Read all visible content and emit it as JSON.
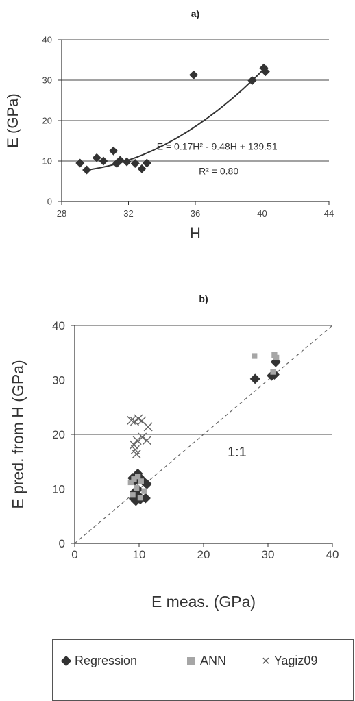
{
  "chart_data": [
    {
      "type": "scatter",
      "title": "a)",
      "xlabel": "H",
      "ylabel": "E (GPa)",
      "xlim": [
        28,
        44
      ],
      "ylim": [
        0,
        40
      ],
      "xticks": [
        28,
        32,
        36,
        40,
        44
      ],
      "yticks": [
        0,
        10,
        20,
        30,
        40
      ],
      "grid": "horizontal",
      "series": [
        {
          "marker": "diamond",
          "color": "#333333",
          "x": [
            29.1,
            29.5,
            30.1,
            30.5,
            31.1,
            31.3,
            31.5,
            31.9,
            32.4,
            32.8,
            33.1,
            35.9,
            39.4,
            40.1,
            40.2
          ],
          "y": [
            9.5,
            7.8,
            10.8,
            10.0,
            12.5,
            9.4,
            10.2,
            9.8,
            9.4,
            8.1,
            9.5,
            31.3,
            29.9,
            33.0,
            32.1
          ]
        }
      ],
      "trendline": {
        "type": "polynomial",
        "coefficients": [
          0.17,
          -9.48,
          139.51
        ],
        "x_range": [
          29.4,
          40.3
        ],
        "equation": "E = 0.17H² - 9.48H + 139.51",
        "r2_label": "R² = 0.80"
      }
    },
    {
      "type": "scatter",
      "title": "b)",
      "xlabel": "E meas. (GPa)",
      "ylabel": "E pred. from H (GPa)",
      "xlim": [
        0,
        40
      ],
      "ylim": [
        0,
        40
      ],
      "xticks": [
        0,
        10,
        20,
        30,
        40
      ],
      "yticks": [
        0,
        10,
        20,
        30,
        40
      ],
      "grid": "horizontal",
      "annotation": "1:1",
      "reference_line": "y = x (dashed)",
      "legend_position": "bottom",
      "series": [
        {
          "name": "Regression",
          "marker": "diamond",
          "color": "#333333",
          "x": [
            9.0,
            9.4,
            9.8,
            10.0,
            10.5,
            11.2,
            9.3,
            9.8,
            10.2,
            11.0,
            9.5,
            10.1,
            9.2,
            28.0,
            30.6,
            31.0,
            31.2
          ],
          "y": [
            12.0,
            11.5,
            12.8,
            12.2,
            11.6,
            10.9,
            9.4,
            9.9,
            8.1,
            8.3,
            7.8,
            8.5,
            8.2,
            30.2,
            30.8,
            31.0,
            33.3
          ]
        },
        {
          "name": "ANN",
          "marker": "square",
          "color": "#a6a6a6",
          "x": [
            8.7,
            9.2,
            9.8,
            10.3,
            10.8,
            9.6,
            10.2,
            9.0,
            27.9,
            31.0,
            31.3,
            30.8
          ],
          "y": [
            11.2,
            11.8,
            12.3,
            11.4,
            9.6,
            10.2,
            8.4,
            8.9,
            34.4,
            34.6,
            34.1,
            31.5
          ]
        },
        {
          "name": "Yagiz09",
          "marker": "x",
          "color": "#666666",
          "x": [
            8.8,
            9.3,
            9.9,
            10.4,
            11.4,
            9.2,
            9.7,
            10.5,
            11.2,
            9.4,
            9.6
          ],
          "y": [
            22.6,
            22.4,
            22.9,
            22.5,
            21.4,
            18.1,
            18.9,
            19.5,
            18.9,
            17.2,
            16.4
          ]
        }
      ]
    }
  ]
}
